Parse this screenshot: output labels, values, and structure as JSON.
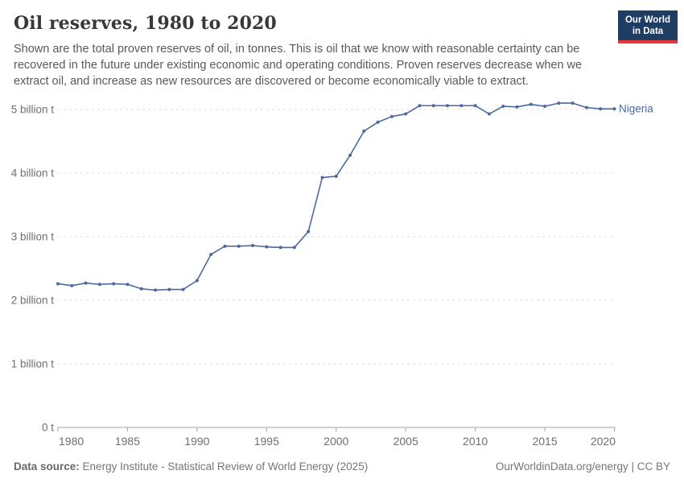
{
  "header": {
    "title": "Oil reserves, 1980 to 2020",
    "subtitle": "Shown are the total proven reserves of oil, in tonnes. This is oil that we know with reasonable certainty can be recovered in the future under existing economic and operating conditions. Proven reserves decrease when we extract oil, and increase as new resources are discovered or become economically viable to extract.",
    "logo": {
      "line1": "Our World",
      "line2": "in Data",
      "bg_color": "#1d3d63",
      "accent_color": "#e0363c"
    }
  },
  "chart_data": {
    "type": "line",
    "title": "Oil reserves, 1980 to 2020",
    "unit": "billion tonnes",
    "grid": "dashed horizontal gridlines",
    "legend_position": "label at end of line",
    "line_color": "#4c6a9c",
    "axis_text_color": "#6e6e6e",
    "gridline_color": "#dcdcdc",
    "axis_line_color": "#a3a3a3",
    "xlim": [
      1980,
      2020
    ],
    "ylim_billion_t": [
      0,
      5.35
    ],
    "x_ticks": [
      1980,
      1985,
      1990,
      1995,
      2000,
      2005,
      2010,
      2015,
      2020
    ],
    "y_ticks": [
      {
        "value": 0,
        "label": "0 t"
      },
      {
        "value": 1,
        "label": "1 billion t"
      },
      {
        "value": 2,
        "label": "2 billion t"
      },
      {
        "value": 3,
        "label": "3 billion t"
      },
      {
        "value": 4,
        "label": "4 billion t"
      },
      {
        "value": 5,
        "label": "5 billion t"
      }
    ],
    "series": [
      {
        "name": "Nigeria",
        "x": [
          1980,
          1981,
          1982,
          1983,
          1984,
          1985,
          1986,
          1987,
          1988,
          1989,
          1990,
          1991,
          1992,
          1993,
          1994,
          1995,
          1996,
          1997,
          1998,
          1999,
          2000,
          2001,
          2002,
          2003,
          2004,
          2005,
          2006,
          2007,
          2008,
          2009,
          2010,
          2011,
          2012,
          2013,
          2014,
          2015,
          2016,
          2017,
          2018,
          2019,
          2020
        ],
        "values_billion_t": [
          2.26,
          2.23,
          2.27,
          2.25,
          2.26,
          2.25,
          2.18,
          2.16,
          2.17,
          2.17,
          2.31,
          2.72,
          2.85,
          2.85,
          2.86,
          2.84,
          2.83,
          2.83,
          3.08,
          3.93,
          3.95,
          4.28,
          4.66,
          4.8,
          4.89,
          4.93,
          5.06,
          5.06,
          5.06,
          5.06,
          5.06,
          4.93,
          5.05,
          5.04,
          5.08,
          5.05,
          5.1,
          5.1,
          5.03,
          5.01,
          5.01
        ]
      }
    ]
  },
  "footer": {
    "source_label": "Data source:",
    "source_text": "Energy Institute - Statistical Review of World Energy (2025)",
    "right_text": "OurWorldinData.org/energy | CC BY"
  }
}
